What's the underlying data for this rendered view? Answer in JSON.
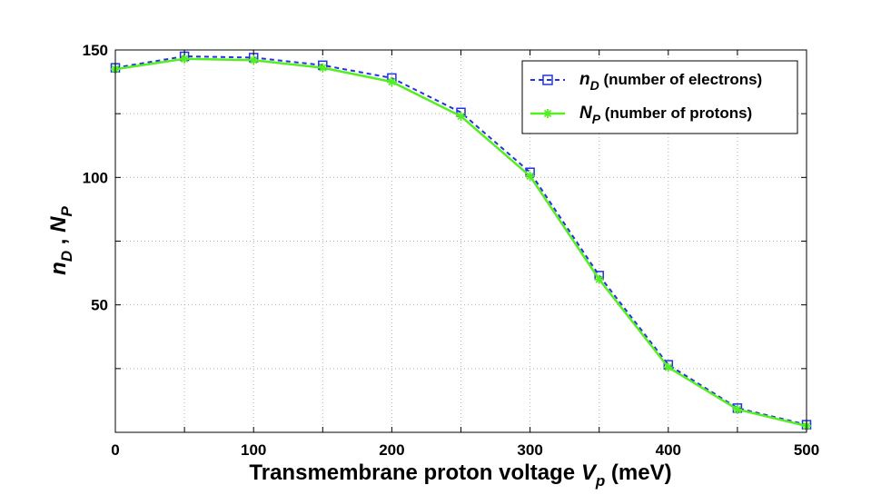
{
  "chart_data": {
    "type": "line",
    "title": "",
    "xlabel": {
      "main": "Transmembrane proton voltage  ",
      "symbol": "V",
      "subscript": "p",
      "unit": " (meV)"
    },
    "ylabel": {
      "sym1": "n",
      "sub1": "D",
      "sep": " , ",
      "sym2": "N",
      "sub2": "P"
    },
    "xlim": [
      0,
      500
    ],
    "ylim": [
      0,
      150
    ],
    "xticks": [
      0,
      100,
      200,
      300,
      400,
      500
    ],
    "yticks": [
      50,
      100,
      150
    ],
    "grid": true,
    "legend_position": "top-right",
    "x": [
      0,
      50,
      100,
      150,
      200,
      250,
      300,
      350,
      400,
      450,
      500
    ],
    "series": [
      {
        "name": "n_D",
        "legend_symbol": "n",
        "legend_sub": "D",
        "legend_text": " (number of electrons)",
        "color": "#2233dd",
        "line": "dashed",
        "marker": "square",
        "values": [
          143,
          147.5,
          147,
          144,
          139,
          125.5,
          102,
          61.5,
          26.5,
          9.5,
          3
        ]
      },
      {
        "name": "N_P",
        "legend_symbol": "N",
        "legend_sub": "P",
        "legend_text": " (number of protons)",
        "color": "#55ee22",
        "line": "solid",
        "marker": "asterisk",
        "values": [
          142.5,
          146.5,
          146,
          143,
          137.5,
          124,
          100.5,
          60,
          25.5,
          9,
          2.5
        ]
      }
    ]
  }
}
